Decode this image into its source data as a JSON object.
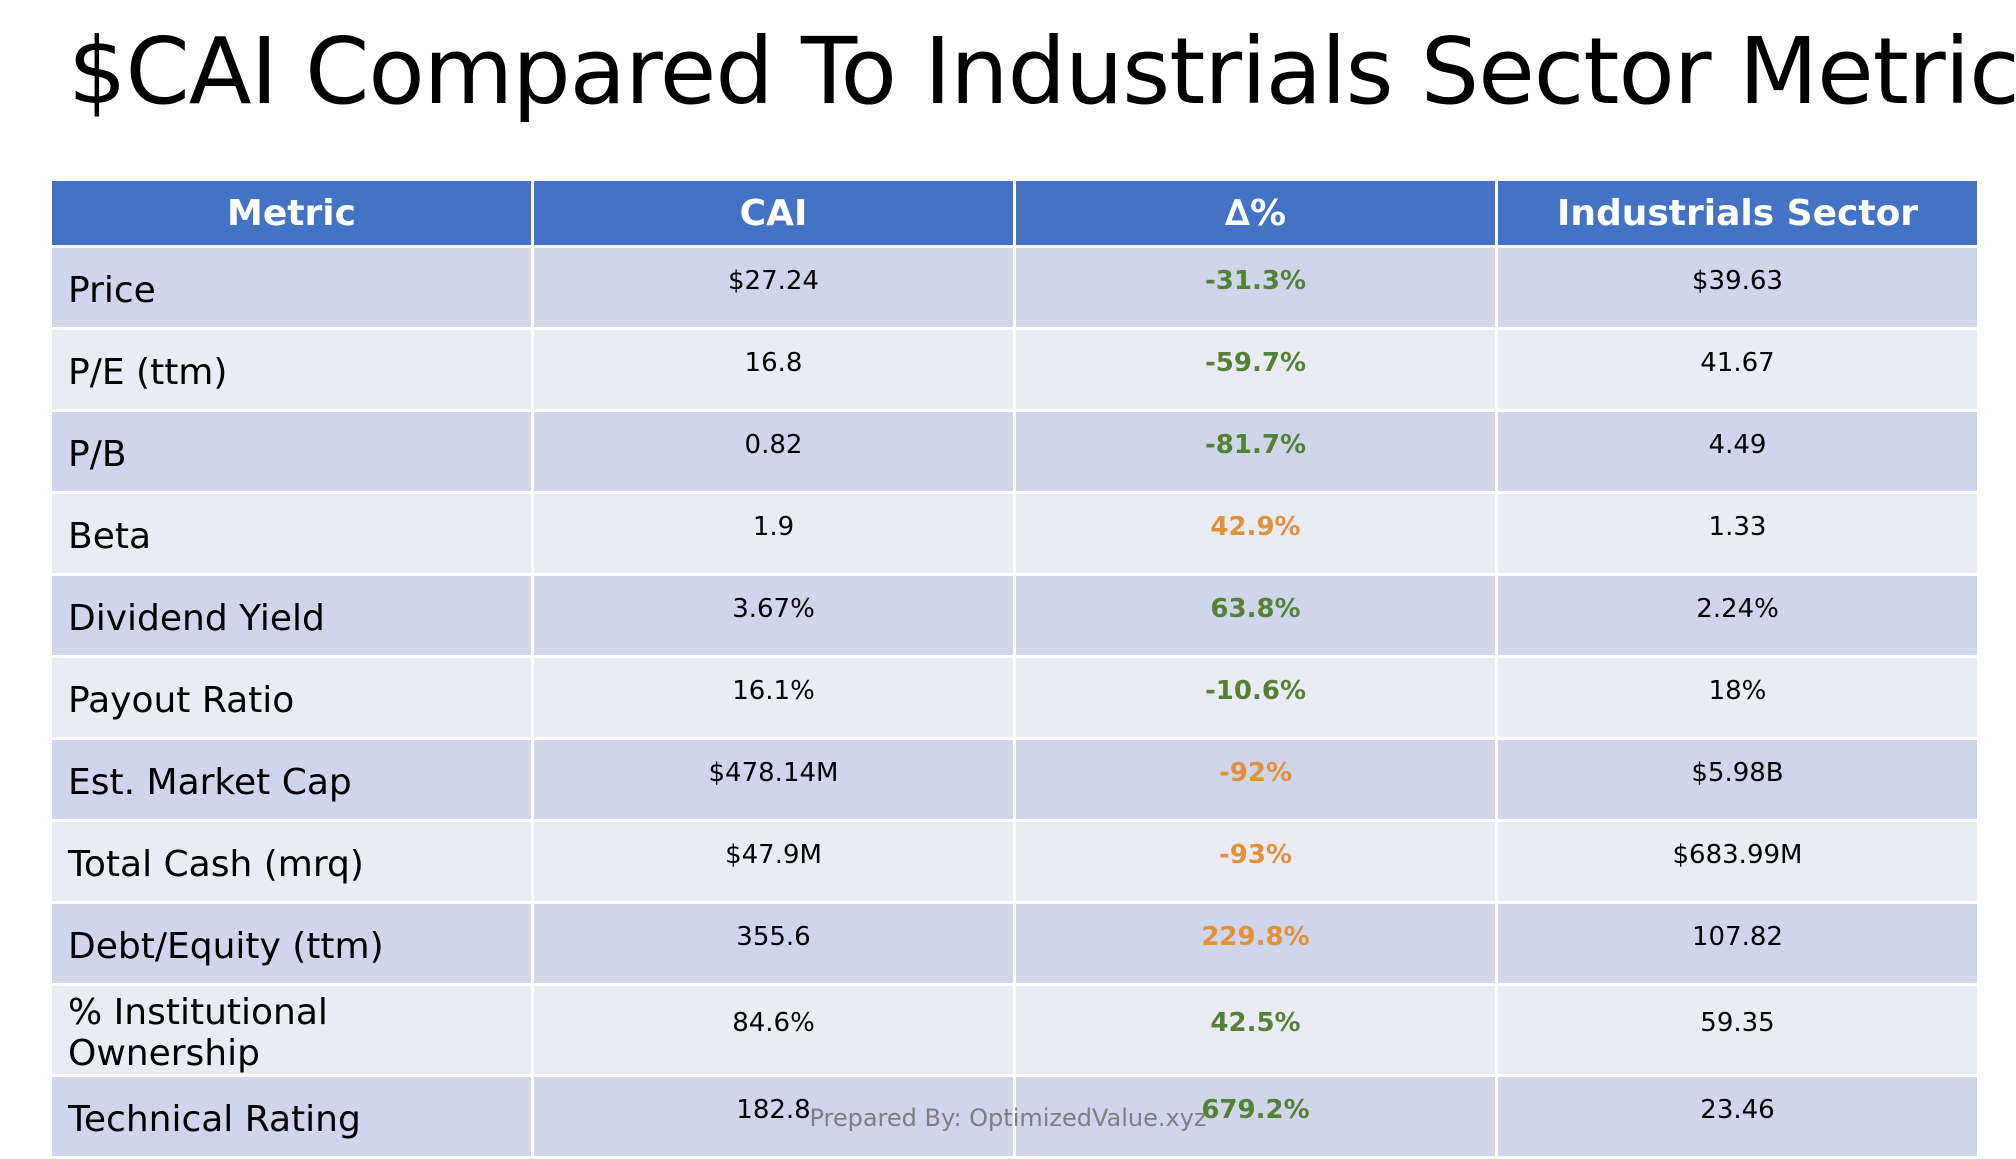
{
  "title": "$CAI Compared To Industrials Sector Metrics",
  "colors": {
    "header_bg": "#4472c4",
    "row_odd": "#cfd5ea",
    "row_even": "#e9ebf5",
    "positive_delta": "#548235",
    "negative_delta": "#e0913a"
  },
  "table": {
    "headers": [
      "Metric",
      "CAI",
      "∆%",
      "Industrials Sector"
    ],
    "rows": [
      {
        "metric": "Price",
        "cai": "$27.24",
        "delta": "-31.3%",
        "sector": "$39.63",
        "delta_color": "#548235"
      },
      {
        "metric": "P/E (ttm)",
        "cai": "16.8",
        "delta": "-59.7%",
        "sector": "41.67",
        "delta_color": "#548235"
      },
      {
        "metric": "P/B",
        "cai": "0.82",
        "delta": "-81.7%",
        "sector": "4.49",
        "delta_color": "#548235"
      },
      {
        "metric": "Beta",
        "cai": "1.9",
        "delta": "42.9%",
        "sector": "1.33",
        "delta_color": "#e0913a"
      },
      {
        "metric": "Dividend Yield",
        "cai": "3.67%",
        "delta": "63.8%",
        "sector": "2.24%",
        "delta_color": "#548235"
      },
      {
        "metric": "Payout Ratio",
        "cai": "16.1%",
        "delta": "-10.6%",
        "sector": "18%",
        "delta_color": "#548235"
      },
      {
        "metric": "Est. Market Cap",
        "cai": "$478.14M",
        "delta": "-92%",
        "sector": "$5.98B",
        "delta_color": "#e0913a"
      },
      {
        "metric": "Total Cash (mrq)",
        "cai": "$47.9M",
        "delta": "-93%",
        "sector": "$683.99M",
        "delta_color": "#e0913a"
      },
      {
        "metric": "Debt/Equity (ttm)",
        "cai": "355.6",
        "delta": "229.8%",
        "sector": "107.82",
        "delta_color": "#e0913a"
      },
      {
        "metric": "% Institutional Ownership",
        "cai": "84.6%",
        "delta": "42.5%",
        "sector": "59.35",
        "delta_color": "#548235"
      },
      {
        "metric": "Technical Rating",
        "cai": "182.8",
        "delta": "679.2%",
        "sector": "23.46",
        "delta_color": "#548235"
      }
    ]
  },
  "footer": "Prepared By: OptimizedValue.xyz"
}
